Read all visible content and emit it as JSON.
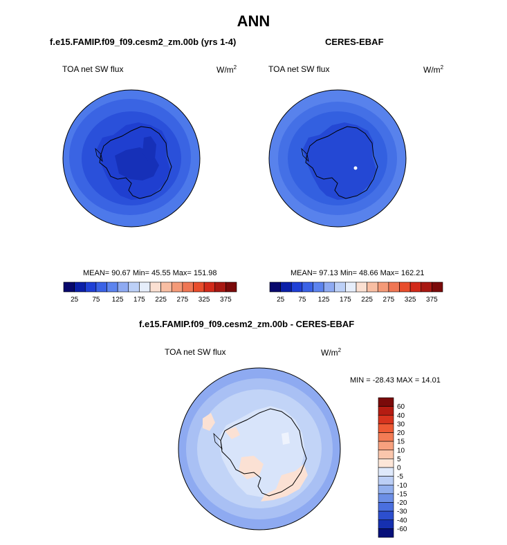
{
  "title": "ANN",
  "panels": [
    {
      "case": "f.e15.FAMIP.f09_f09.cesm2_zm.00b (yrs 1-4)",
      "variable": "TOA net SW flux",
      "units": "W/m",
      "units_sup": "2",
      "stats": "MEAN=  90.67  Min=  45.55  Max= 151.98"
    },
    {
      "case": "CERES-EBAF",
      "variable": "TOA net SW flux",
      "units": "W/m",
      "units_sup": "2",
      "stats": "MEAN=  97.13  Min=  48.66  Max= 162.21"
    },
    {
      "case": "f.e15.FAMIP.f09_f09.cesm2_zm.00b - CERES-EBAF",
      "variable": "TOA net SW flux",
      "units": "W/m",
      "units_sup": "2",
      "stats": "MIN = -28.43  MAX =  14.01"
    }
  ],
  "chart_data": [
    {
      "type": "heatmap",
      "projection": "south polar stereographic",
      "title": "f.e15.FAMIP.f09_f09.cesm2_zm.00b (yrs 1-4)",
      "variable": "TOA net SW flux",
      "units": "W/m2",
      "mean": 90.67,
      "min": 45.55,
      "max": 151.98,
      "colorbar": {
        "orientation": "horizontal",
        "ticks": [
          "25",
          "75",
          "125",
          "175",
          "225",
          "275",
          "325",
          "375"
        ],
        "colors": [
          "#08086c",
          "#0b1fa8",
          "#1f40d6",
          "#3a62e6",
          "#5d84ef",
          "#8eaaf2",
          "#bcd0f7",
          "#e6eefb",
          "#fbe0d2",
          "#f8bea3",
          "#f49a78",
          "#ef7654",
          "#e84d2c",
          "#d22a1a",
          "#a81812",
          "#7a0a0a"
        ]
      }
    },
    {
      "type": "heatmap",
      "projection": "south polar stereographic",
      "title": "CERES-EBAF",
      "variable": "TOA net SW flux",
      "units": "W/m2",
      "mean": 97.13,
      "min": 48.66,
      "max": 162.21,
      "colorbar": {
        "orientation": "horizontal",
        "ticks": [
          "25",
          "75",
          "125",
          "175",
          "225",
          "275",
          "325",
          "375"
        ],
        "colors": [
          "#08086c",
          "#0b1fa8",
          "#1f40d6",
          "#3a62e6",
          "#5d84ef",
          "#8eaaf2",
          "#bcd0f7",
          "#e6eefb",
          "#fbe0d2",
          "#f8bea3",
          "#f49a78",
          "#ef7654",
          "#e84d2c",
          "#d22a1a",
          "#a81812",
          "#7a0a0a"
        ]
      }
    },
    {
      "type": "heatmap",
      "projection": "south polar stereographic",
      "title": "f.e15.FAMIP.f09_f09.cesm2_zm.00b - CERES-EBAF",
      "variable": "TOA net SW flux",
      "units": "W/m2",
      "min": -28.43,
      "max": 14.01,
      "colorbar": {
        "orientation": "vertical",
        "ticks": [
          "60",
          "40",
          "30",
          "20",
          "15",
          "10",
          "5",
          "0",
          "-5",
          "-10",
          "-15",
          "-20",
          "-30",
          "-40",
          "-60"
        ],
        "colors": [
          "#7a0a0a",
          "#b51c12",
          "#d8341e",
          "#ee5a34",
          "#f37c55",
          "#f7a17e",
          "#fac6ac",
          "#fde6d8",
          "#dfe9fb",
          "#bccff6",
          "#93b0ee",
          "#6c8fe6",
          "#4a6fdf",
          "#2d4fcf",
          "#1630b0",
          "#07107a"
        ]
      }
    }
  ]
}
